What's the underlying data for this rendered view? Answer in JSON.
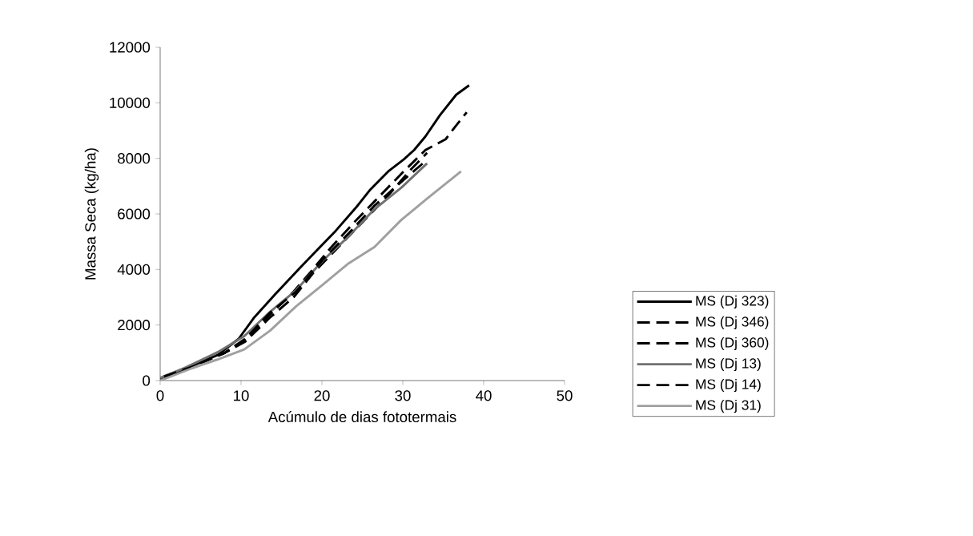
{
  "chart_data": {
    "type": "line",
    "xlabel": "Acúmulo de dias fototermais",
    "ylabel": "Massa Seca (kg/ha)",
    "xlim": [
      0,
      50
    ],
    "xticks": [
      0,
      10,
      20,
      30,
      40,
      50
    ],
    "ylim": [
      0,
      12000
    ],
    "yticks": [
      0,
      2000,
      4000,
      6000,
      8000,
      10000,
      12000
    ],
    "legend": "bottom right",
    "marker": "none",
    "series": [
      {
        "name": "MS (Dj 323)",
        "color": "#000000",
        "line_style": "solid",
        "x": [
          0,
          2.3,
          7.1,
          9.7,
          11.65,
          14.2,
          17.2,
          19.1,
          21.7,
          24.3,
          25.9,
          28.2,
          30.1,
          31.4,
          32.8,
          34.6,
          36.6,
          38.2
        ],
        "values": [
          50,
          320,
          920,
          1500,
          2280,
          3100,
          4030,
          4610,
          5390,
          6260,
          6850,
          7530,
          7960,
          8300,
          8790,
          9560,
          10290,
          10630
        ]
      },
      {
        "name": "MS (Dj 346)",
        "color": "#000000",
        "line_style": "dashed",
        "x": [
          0.5,
          4,
          8,
          10.5,
          13.5,
          16.5,
          18.4,
          21,
          24,
          27,
          30,
          32.8,
          35.3,
          36.5,
          37.9
        ],
        "values": [
          150,
          520,
          1000,
          1450,
          2350,
          3200,
          3840,
          4750,
          5700,
          6600,
          7500,
          8300,
          8690,
          9150,
          9660
        ]
      },
      {
        "name": "MS (Dj 360)",
        "color": "#000000",
        "line_style": "dashed",
        "x": [
          0.5,
          4,
          8,
          10.5,
          13.5,
          16.5,
          19,
          22,
          25,
          28,
          31,
          33
        ],
        "values": [
          150,
          520,
          1000,
          1400,
          2250,
          3000,
          3900,
          4800,
          5700,
          6600,
          7600,
          8200
        ]
      },
      {
        "name": "MS (Dj 13)",
        "color": "#707070",
        "line_style": "solid",
        "x": [
          0,
          3,
          7.1,
          10.4,
          13.6,
          16.8,
          20.1,
          23.3,
          26.5,
          29.8,
          33
        ],
        "values": [
          100,
          450,
          1020,
          1600,
          2480,
          3250,
          4320,
          5190,
          6170,
          6940,
          7820
        ]
      },
      {
        "name": "MS (Dj 14)",
        "color": "#000000",
        "line_style": "dashed",
        "x": [
          0.5,
          4,
          8,
          10.5,
          13.6,
          16.8,
          20.1,
          23.3,
          26.5,
          29.8,
          33
        ],
        "values": [
          150,
          500,
          1000,
          1500,
          2450,
          3200,
          4350,
          5300,
          6300,
          7150,
          7950
        ]
      },
      {
        "name": "MS (Dj 31)",
        "color": "#a0a0a0",
        "line_style": "solid",
        "x": [
          0,
          3.9,
          7,
          10.4,
          13.6,
          16.8,
          20.1,
          23.3,
          26.5,
          29.8,
          33,
          37.2
        ],
        "values": [
          0,
          440,
          750,
          1120,
          1800,
          2670,
          3450,
          4220,
          4810,
          5780,
          6550,
          7530
        ]
      }
    ]
  }
}
